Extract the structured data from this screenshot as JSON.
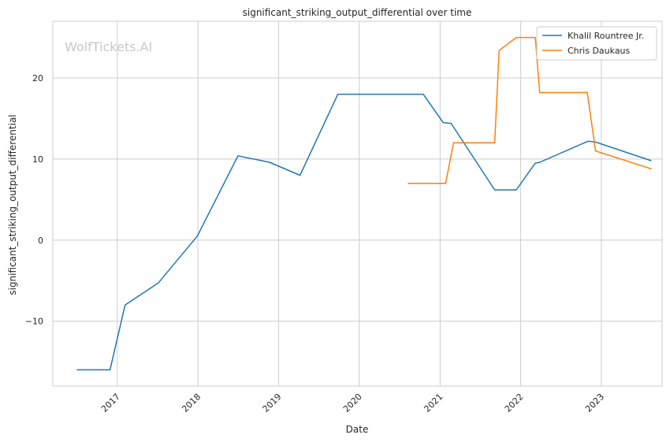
{
  "watermark": "WolfTickets.AI",
  "chart_data": {
    "type": "line",
    "title": "significant_striking_output_differential over time",
    "xlabel": "Date",
    "ylabel": "significant_striking_output_differential",
    "xlim": [
      "2016-03-15",
      "2023-10-03"
    ],
    "ylim": [
      -18,
      27
    ],
    "grid": true,
    "legend_position": "top-right",
    "x_ticks": [
      "2017",
      "2018",
      "2019",
      "2020",
      "2021",
      "2022",
      "2023"
    ],
    "y_ticks": [
      -10,
      0,
      10,
      20
    ],
    "y_tick_labels": [
      "−10",
      "0",
      "10",
      "20"
    ],
    "series": [
      {
        "name": "Khalil Rountree Jr.",
        "color": "#1f77b4",
        "points": [
          [
            "2016-07-01",
            -16
          ],
          [
            "2016-11-29",
            -16
          ],
          [
            "2017-02-05",
            -8
          ],
          [
            "2017-07-05",
            -5.3
          ],
          [
            "2017-12-29",
            0.5
          ],
          [
            "2018-07-01",
            10.4
          ],
          [
            "2018-11-21",
            9.6
          ],
          [
            "2019-04-08",
            8.0
          ],
          [
            "2019-09-26",
            18.0
          ],
          [
            "2020-10-17",
            18.0
          ],
          [
            "2021-01-15",
            14.5
          ],
          [
            "2021-02-20",
            14.4
          ],
          [
            "2021-09-05",
            6.2
          ],
          [
            "2021-12-12",
            6.2
          ],
          [
            "2022-03-08",
            9.5
          ],
          [
            "2022-03-28",
            9.6
          ],
          [
            "2022-11-01",
            12.2
          ],
          [
            "2022-12-06",
            12.1
          ],
          [
            "2023-08-15",
            9.8
          ]
        ]
      },
      {
        "name": "Chris Daukaus",
        "color": "#ff7f0e",
        "points": [
          [
            "2020-08-08",
            7.0
          ],
          [
            "2021-01-26",
            7.0
          ],
          [
            "2021-03-03",
            12.0
          ],
          [
            "2021-09-05",
            12.0
          ],
          [
            "2021-09-25",
            23.4
          ],
          [
            "2021-12-12",
            25.0
          ],
          [
            "2022-03-08",
            25.0
          ],
          [
            "2022-03-28",
            18.2
          ],
          [
            "2022-10-29",
            18.2
          ],
          [
            "2022-12-06",
            11.0
          ],
          [
            "2023-08-15",
            8.8
          ]
        ]
      }
    ]
  }
}
